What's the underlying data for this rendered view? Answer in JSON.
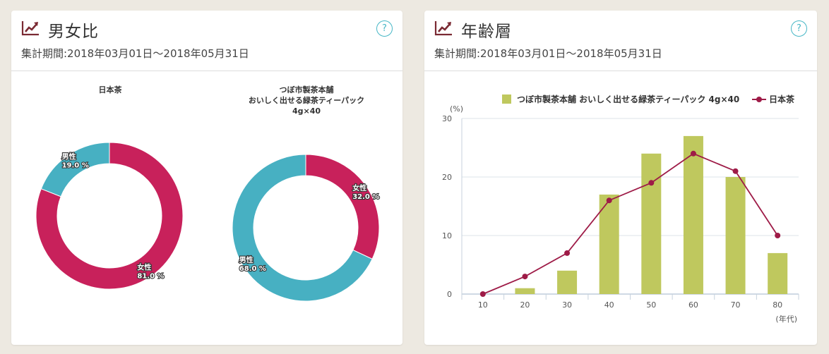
{
  "gender_card": {
    "title": "男女比",
    "period": "集計期間:2018年03月01日〜2018年05月31日",
    "help": "?"
  },
  "age_card": {
    "title": "年齢層",
    "period": "集計期間:2018年03月01日〜2018年05月31日",
    "help": "?"
  },
  "colors": {
    "female": "#c8215b",
    "male": "#47b0c2",
    "bar": "#bfc85e",
    "line": "#9e1b47"
  },
  "chart_data": [
    {
      "type": "pie",
      "title": "日本茶",
      "slices": [
        {
          "label": "女性",
          "value": 81.0,
          "display": "81.0 %"
        },
        {
          "label": "男性",
          "value": 19.0,
          "display": "19.0 %"
        }
      ]
    },
    {
      "type": "pie",
      "title": "つぼ市製茶本舗\nおいしく出せる緑茶ティーパック\n4g×40",
      "title_lines": [
        "つぼ市製茶本舗",
        "おいしく出せる緑茶ティーパック",
        "4g×40"
      ],
      "slices": [
        {
          "label": "女性",
          "value": 32.0,
          "display": "32.0 %"
        },
        {
          "label": "男性",
          "value": 68.0,
          "display": "68.0 %"
        }
      ]
    },
    {
      "type": "bar",
      "categories": [
        "10",
        "20",
        "30",
        "40",
        "50",
        "60",
        "70",
        "80"
      ],
      "series": [
        {
          "name": "つぼ市製茶本舗 おいしく出せる緑茶ティーパック 4g×40",
          "kind": "bar",
          "values": [
            0,
            1,
            4,
            17,
            24,
            27,
            20,
            7
          ]
        },
        {
          "name": "日本茶",
          "kind": "line",
          "values": [
            0,
            3,
            7,
            16,
            19,
            24,
            21,
            10
          ]
        }
      ],
      "ylabel": "(%)",
      "xlabel": "(年代)",
      "ylim": [
        0,
        30
      ],
      "yticks": [
        0,
        10,
        20,
        30
      ],
      "grid": true,
      "legend": "top"
    }
  ]
}
